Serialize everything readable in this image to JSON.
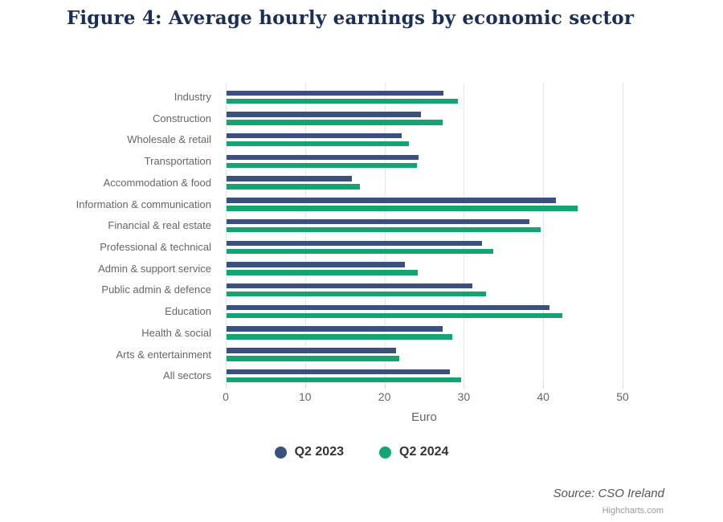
{
  "chart_data": {
    "type": "bar",
    "orientation": "horizontal",
    "title": "Figure 4: Average hourly earnings by economic sector",
    "categories": [
      "Industry",
      "Construction",
      "Wholesale & retail",
      "Transportation",
      "Accommodation & food",
      "Information & communication",
      "Financial & real estate",
      "Professional & technical",
      "Admin & support service",
      "Public admin & defence",
      "Education",
      "Health & social",
      "Arts & entertainment",
      "All sectors"
    ],
    "series": [
      {
        "name": "Q2 2023",
        "color": "#3a517e",
        "values": [
          27.3,
          24.5,
          22.1,
          24.2,
          15.8,
          41.5,
          38.2,
          32.2,
          22.5,
          31.0,
          40.7,
          27.2,
          21.4,
          28.1
        ]
      },
      {
        "name": "Q2 2024",
        "color": "#14a471",
        "values": [
          29.1,
          27.2,
          23.0,
          24.0,
          16.8,
          44.2,
          39.6,
          33.6,
          24.1,
          32.7,
          42.3,
          28.4,
          21.8,
          29.6
        ]
      }
    ],
    "xlabel": "Euro",
    "xlim": [
      0,
      50
    ],
    "xticks": [
      0,
      10,
      20,
      30,
      40,
      50
    ],
    "grid": true,
    "legend_position": "bottom",
    "source": "Source: CSO Ireland",
    "credits": "Highcharts.com",
    "colors": {
      "title": "#1b2f56",
      "axis_text": "#666666",
      "category_text": "#666666",
      "legend_text": "#333333",
      "gridline": "#e6e6e6",
      "background": "#ffffff"
    }
  }
}
